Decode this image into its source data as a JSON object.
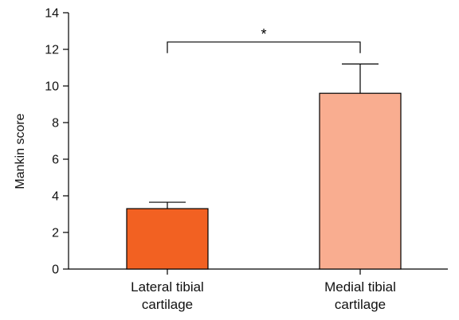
{
  "chart_data": {
    "type": "bar",
    "ylabel": "Mankin score",
    "xlabel": "",
    "ylim": [
      0,
      14
    ],
    "yticks": [
      0,
      2,
      4,
      6,
      8,
      10,
      12,
      14
    ],
    "grid": false,
    "categories": [
      [
        "Lateral tibial",
        "cartilage"
      ],
      [
        "Medial tibial",
        "cartilage"
      ]
    ],
    "values": [
      3.3,
      9.6
    ],
    "error_upper": [
      3.65,
      11.2
    ],
    "bar_colors": [
      "#f26122",
      "#f9ad90"
    ],
    "significance": {
      "between": [
        0,
        1
      ],
      "label": "*",
      "level": 12.4
    }
  }
}
